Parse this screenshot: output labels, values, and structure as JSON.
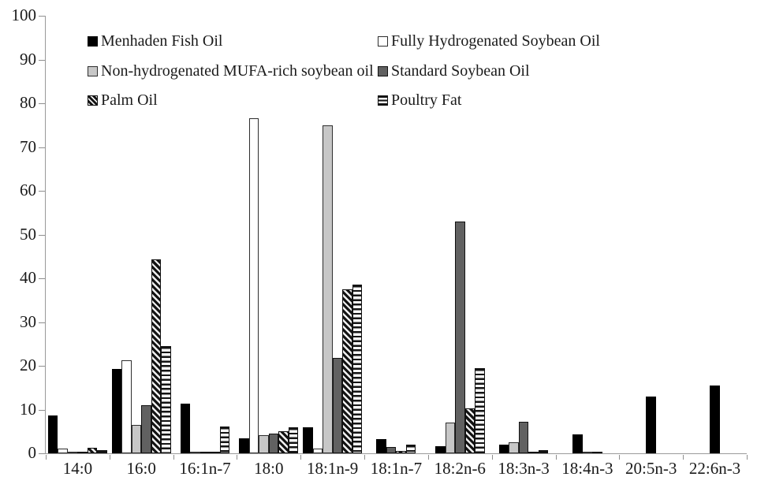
{
  "chart_data": {
    "type": "bar",
    "title": "",
    "xlabel": "",
    "ylabel": "",
    "ylim": [
      0,
      100
    ],
    "ytick_step": 10,
    "grid": false,
    "legend_position": "top, two columns inside plot area",
    "categories": [
      "14:0",
      "16:0",
      "16:1n-7",
      "18:0",
      "18:1n-9",
      "18:1n-7",
      "18:2n-6",
      "18:3n-3",
      "18:4n-3",
      "20:5n-3",
      "22:6n-3"
    ],
    "series": [
      {
        "key": "menhaden-fish-oil",
        "name": "Menhaden Fish Oil",
        "fill": "black",
        "color": "#000000",
        "values": [
          8.7,
          19.2,
          11.4,
          3.5,
          6.0,
          3.2,
          1.7,
          2.0,
          4.4,
          13.0,
          15.5
        ]
      },
      {
        "key": "fully-hydrogenated-soybean-oil",
        "name": "Fully Hydrogenated Soybean Oil",
        "fill": "white",
        "color": "#ffffff",
        "values": [
          1.0,
          21.3,
          0.2,
          76.5,
          1.0,
          0,
          0,
          0,
          0,
          0,
          0
        ]
      },
      {
        "key": "non-hydrogenated-mufa-rich-soybean-oil",
        "name": "Non-hydrogenated MUFA-rich soybean oil",
        "fill": "lightgray",
        "color": "#c7c7c7",
        "values": [
          0.2,
          6.5,
          0,
          4.2,
          75.0,
          0,
          7.0,
          2.5,
          0.3,
          0,
          0
        ]
      },
      {
        "key": "standard-soybean-oil",
        "name": "Standard Soybean Oil",
        "fill": "darkgray",
        "color": "#616161",
        "values": [
          0.3,
          11.0,
          0.4,
          4.5,
          21.8,
          1.5,
          53.0,
          7.3,
          0.3,
          0,
          0
        ]
      },
      {
        "key": "palm-oil",
        "name": "Palm Oil",
        "fill": "diag",
        "color": "diagonal black/white hatch",
        "values": [
          1.2,
          44.4,
          0.2,
          5.0,
          37.5,
          0.6,
          10.2,
          0.3,
          0,
          0,
          0
        ]
      },
      {
        "key": "poultry-fat",
        "name": "Poultry Fat",
        "fill": "horiz",
        "color": "horizontal black/white stripes",
        "values": [
          0.8,
          24.5,
          6.2,
          6.0,
          38.5,
          1.9,
          19.5,
          0.7,
          0,
          0,
          0
        ]
      }
    ],
    "legend_layout": {
      "columns": [
        {
          "x": 110,
          "item_keys": [
            "menhaden-fish-oil",
            "non-hydrogenated-mufa-rich-soybean-oil",
            "palm-oil"
          ]
        },
        {
          "x": 478,
          "item_keys": [
            "fully-hydrogenated-soybean-oil",
            "standard-soybean-oil",
            "poultry-fat"
          ]
        }
      ],
      "row_tops": [
        22,
        60,
        97
      ]
    },
    "ytick_labels": [
      "0",
      "10",
      "20",
      "30",
      "40",
      "50",
      "60",
      "70",
      "80",
      "90",
      "100"
    ]
  },
  "colors": {
    "background": "#ffffff",
    "axis": "#9a9a9a",
    "tick": "#8f8f8f",
    "text": "#1a1a1a"
  }
}
